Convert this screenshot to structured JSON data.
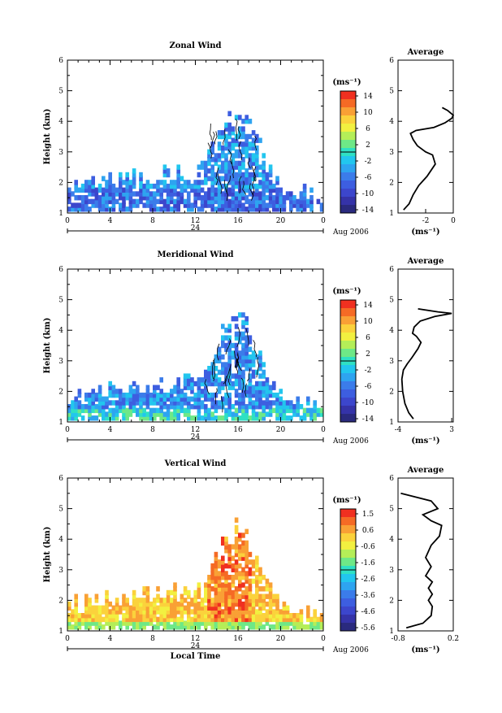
{
  "chart_data": [
    {
      "type": "heatmap",
      "title": "Zonal Wind",
      "ylabel": "Height (km)",
      "ylim": [
        1,
        6
      ],
      "yticks": [
        "1",
        "2",
        "3",
        "4",
        "5",
        "6"
      ],
      "xlim": [
        0,
        24
      ],
      "xticks": [
        "0",
        "4",
        "8",
        "12",
        "16",
        "20",
        "0"
      ],
      "date_bar_label": "24",
      "date_label": "Aug 2006",
      "xlabel": "",
      "colorbar": {
        "unit_label": "(ms⁻¹)",
        "ticks": [
          "14",
          "10",
          "6",
          "2",
          "-2",
          "-6",
          "-10",
          "-14"
        ],
        "colors": [
          "#f03020",
          "#f56a25",
          "#f9a035",
          "#fbd23c",
          "#f2f040",
          "#b4ee58",
          "#6ee887",
          "#2fe0c4",
          "#22c6ee",
          "#2ea4f0",
          "#3b7cea",
          "#3d5ee0",
          "#3c46cc",
          "#3533a8",
          "#2a2a7e"
        ]
      },
      "average_profile": {
        "title": "Average",
        "xlabel": "(ms⁻¹)",
        "xlim": [
          -4,
          0
        ],
        "xticks": [
          "-2",
          "0"
        ],
        "points": [
          [
            -3.6,
            1.1
          ],
          [
            -3.2,
            1.3
          ],
          [
            -2.9,
            1.6
          ],
          [
            -2.5,
            1.9
          ],
          [
            -1.9,
            2.2
          ],
          [
            -1.3,
            2.6
          ],
          [
            -1.5,
            2.9
          ],
          [
            -2.0,
            3.0
          ],
          [
            -2.6,
            3.2
          ],
          [
            -2.9,
            3.4
          ],
          [
            -3.1,
            3.6
          ],
          [
            -2.7,
            3.7
          ],
          [
            -1.4,
            3.8
          ],
          [
            -0.6,
            3.95
          ],
          [
            -0.1,
            4.1
          ],
          [
            0,
            4.2
          ],
          [
            -0.4,
            4.35
          ],
          [
            -0.8,
            4.45
          ]
        ]
      }
    },
    {
      "type": "heatmap",
      "title": "Meridional Wind",
      "ylabel": "Height (km)",
      "ylim": [
        1,
        6
      ],
      "yticks": [
        "1",
        "2",
        "3",
        "4",
        "5",
        "6"
      ],
      "xlim": [
        0,
        24
      ],
      "xticks": [
        "0",
        "4",
        "8",
        "12",
        "16",
        "20",
        "0"
      ],
      "date_bar_label": "24",
      "date_label": "Aug 2006",
      "xlabel": "",
      "colorbar": {
        "unit_label": "(ms⁻¹)",
        "ticks": [
          "14",
          "10",
          "6",
          "2",
          "-2",
          "-6",
          "-10",
          "-14"
        ],
        "colors": [
          "#f03020",
          "#f56a25",
          "#f9a035",
          "#fbd23c",
          "#f2f040",
          "#b4ee58",
          "#6ee887",
          "#2fe0c4",
          "#22c6ee",
          "#2ea4f0",
          "#3b7cea",
          "#3d5ee0",
          "#3c46cc",
          "#3533a8",
          "#2a2a7e"
        ]
      },
      "average_profile": {
        "title": "Average",
        "xlabel": "(ms⁻¹)",
        "xlim": [
          -4,
          3.2
        ],
        "xticks": [
          "-4",
          "3"
        ],
        "points": [
          [
            -2.0,
            1.1
          ],
          [
            -2.6,
            1.3
          ],
          [
            -3.1,
            1.6
          ],
          [
            -3.4,
            2.0
          ],
          [
            -3.5,
            2.4
          ],
          [
            -3.3,
            2.7
          ],
          [
            -2.8,
            2.9
          ],
          [
            -2.2,
            3.1
          ],
          [
            -1.4,
            3.4
          ],
          [
            -1.0,
            3.6
          ],
          [
            -1.6,
            3.8
          ],
          [
            -2.1,
            3.9
          ],
          [
            -1.9,
            4.1
          ],
          [
            -1.1,
            4.3
          ],
          [
            0.8,
            4.45
          ],
          [
            3.0,
            4.55
          ],
          [
            1.2,
            4.6
          ],
          [
            -1.4,
            4.7
          ]
        ]
      }
    },
    {
      "type": "heatmap",
      "title": "Vertical Wind",
      "ylabel": "Height (km)",
      "ylim": [
        1,
        6
      ],
      "yticks": [
        "1",
        "2",
        "3",
        "4",
        "5",
        "6"
      ],
      "xlim": [
        0,
        24
      ],
      "xticks": [
        "0",
        "4",
        "8",
        "12",
        "16",
        "20",
        "0"
      ],
      "date_bar_label": "24",
      "date_label": "Aug 2006",
      "xlabel": "Local Time",
      "colorbar": {
        "unit_label": "(ms⁻¹)",
        "ticks": [
          "1.5",
          "0.6",
          "-0.6",
          "-1.6",
          "-2.6",
          "-3.6",
          "-4.6",
          "-5.6"
        ],
        "colors": [
          "#f03020",
          "#f56a25",
          "#f9a035",
          "#fbd23c",
          "#f2f040",
          "#b4ee58",
          "#6ee887",
          "#2fe0c4",
          "#22c6ee",
          "#2ea4f0",
          "#3b7cea",
          "#3d5ee0",
          "#3c46cc",
          "#3533a8",
          "#2a2a7e"
        ]
      },
      "average_profile": {
        "title": "Average",
        "xlabel": "(ms⁻¹)",
        "xlim": [
          -0.8,
          0.2
        ],
        "xticks": [
          "-0.8",
          "0.2"
        ],
        "points": [
          [
            -0.65,
            1.1
          ],
          [
            -0.35,
            1.25
          ],
          [
            -0.2,
            1.5
          ],
          [
            -0.18,
            1.8
          ],
          [
            -0.25,
            2.0
          ],
          [
            -0.18,
            2.2
          ],
          [
            -0.25,
            2.4
          ],
          [
            -0.18,
            2.6
          ],
          [
            -0.3,
            2.8
          ],
          [
            -0.2,
            3.1
          ],
          [
            -0.3,
            3.4
          ],
          [
            -0.2,
            3.8
          ],
          [
            -0.05,
            4.1
          ],
          [
            -0.01,
            4.45
          ],
          [
            -0.2,
            4.6
          ],
          [
            -0.35,
            4.8
          ],
          [
            -0.08,
            5.0
          ],
          [
            -0.2,
            5.25
          ],
          [
            -0.75,
            5.5
          ]
        ]
      }
    }
  ]
}
